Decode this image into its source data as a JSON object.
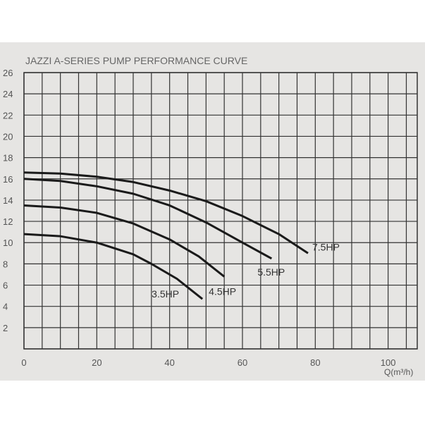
{
  "chart_data": {
    "type": "line",
    "title": "JAZZI A-SERIES PUMP PERFORMANCE CURVE",
    "xlabel": "Q(m³/h)",
    "ylabel": "",
    "xlim": [
      0,
      108
    ],
    "ylim": [
      0,
      26
    ],
    "grid": true,
    "xticks": [
      "0",
      "20",
      "40",
      "60",
      "80",
      "100"
    ],
    "yticks": [
      "2",
      "4",
      "6",
      "8",
      "10",
      "12",
      "14",
      "16",
      "18",
      "20",
      "22",
      "24",
      "26"
    ],
    "series": [
      {
        "name": "7.5HP",
        "x": [
          0,
          10,
          20,
          30,
          40,
          50,
          60,
          70,
          78
        ],
        "y": [
          16.6,
          16.5,
          16.2,
          15.7,
          14.9,
          13.9,
          12.5,
          10.8,
          9.0
        ]
      },
      {
        "name": "5.5HP",
        "x": [
          0,
          10,
          20,
          30,
          40,
          50,
          60,
          68
        ],
        "y": [
          16.0,
          15.8,
          15.3,
          14.6,
          13.5,
          11.9,
          10.0,
          8.5
        ]
      },
      {
        "name": "4.5HP",
        "x": [
          0,
          10,
          20,
          30,
          40,
          48,
          55
        ],
        "y": [
          13.5,
          13.3,
          12.8,
          11.8,
          10.3,
          8.7,
          6.8
        ]
      },
      {
        "name": "3.5HP",
        "x": [
          0,
          10,
          20,
          30,
          35,
          42,
          49
        ],
        "y": [
          10.8,
          10.6,
          10.0,
          8.9,
          8.0,
          6.6,
          4.7
        ]
      }
    ]
  }
}
